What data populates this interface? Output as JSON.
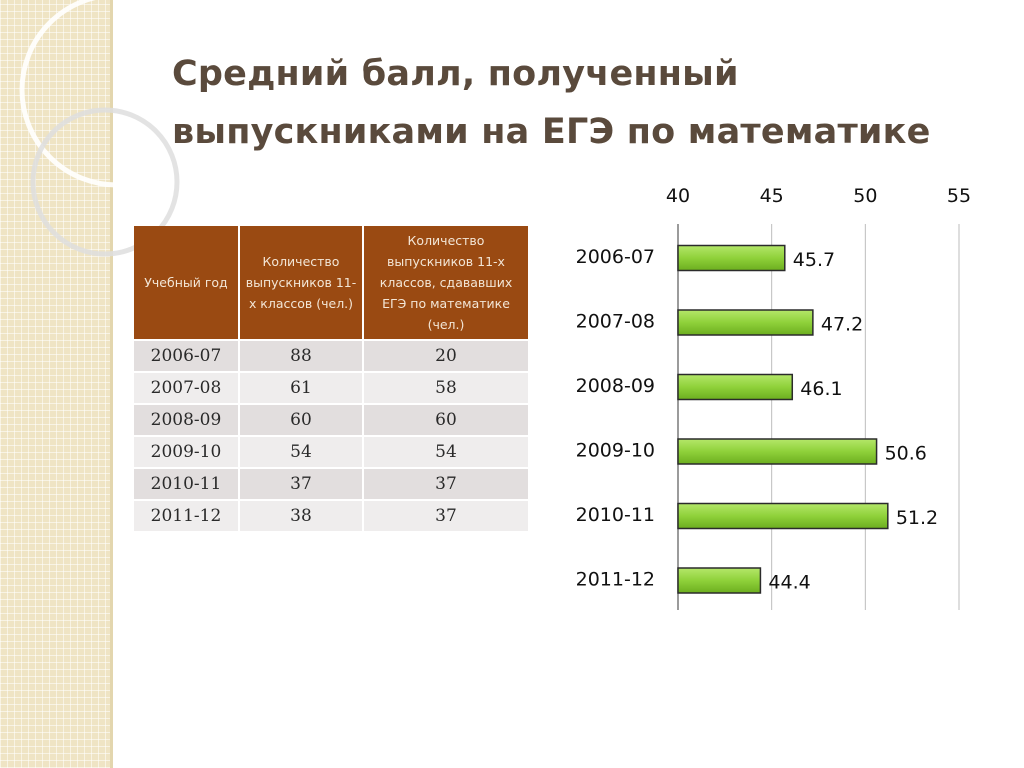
{
  "title_line1": "Средний балл, полученный",
  "title_line2": "выпускниками на ЕГЭ по математике",
  "table": {
    "headers": [
      "Учебный год",
      "Количество выпускников 11-х классов (чел.)",
      "Количество выпускников 11-х классов, сдававших ЕГЭ по математике (чел.)"
    ],
    "rows": [
      [
        "2006-07",
        "88",
        "20"
      ],
      [
        "2007-08",
        "61",
        "58"
      ],
      [
        "2008-09",
        "60",
        "60"
      ],
      [
        "2009-10",
        "54",
        "54"
      ],
      [
        "2010-11",
        "37",
        "37"
      ],
      [
        "2011-12",
        "38",
        "37"
      ]
    ]
  },
  "colors": {
    "header_bg": "#9a4a12",
    "bar_fill": "#8fd13a",
    "title": "#5a4a3c"
  },
  "chart_data": {
    "type": "bar",
    "orientation": "horizontal",
    "categories": [
      "2006-07",
      "2007-08",
      "2008-09",
      "2009-10",
      "2010-11",
      "2011-12"
    ],
    "values": [
      45.7,
      47.2,
      46.1,
      50.6,
      51.2,
      44.4
    ],
    "value_labels": [
      "45.7",
      "47.2",
      "46.1",
      "50.6",
      "51.2",
      "44.4"
    ],
    "xlim": [
      40,
      55
    ],
    "x_ticks": [
      40,
      45,
      50,
      55
    ],
    "x_axis_position": "top",
    "grid": true,
    "title": "",
    "xlabel": "",
    "ylabel": ""
  }
}
